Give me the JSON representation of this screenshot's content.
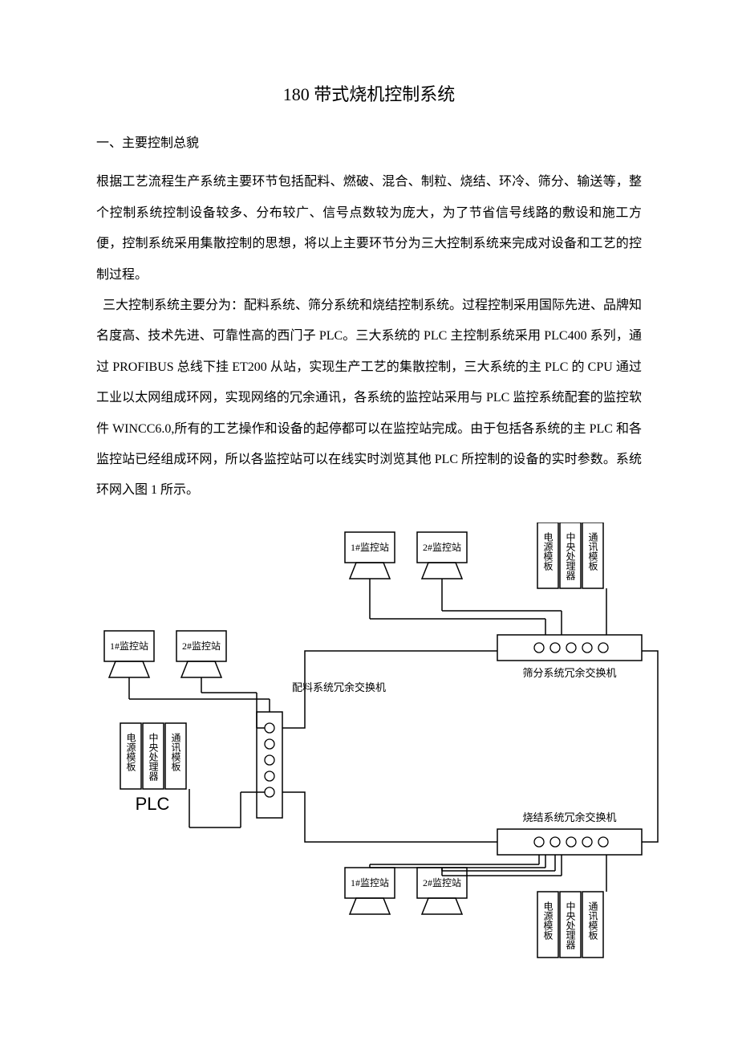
{
  "title": "180 带式烧机控制系统",
  "section1_heading": "一、主要控制总貌",
  "para1": "根据工艺流程生产系统主要环节包括配料、燃破、混合、制粒、烧结、环冷、筛分、输送等，整个控制系统控制设备较多、分布较广、信号点数较为庞大，为了节省信号线路的敷设和施工方便，控制系统采用集散控制的思想，将以上主要环节分为三大控制系统来完成对设备和工艺的控制过程。",
  "para2": "三大控制系统主要分为：配料系统、筛分系统和烧结控制系统。过程控制采用国际先进、品牌知名度高、技术先进、可靠性高的西门子 PLC。三大系统的 PLC 主控制系统采用 PLC400 系列，通过 PROFIBUS 总线下挂 ET200 从站，实现生产工艺的集散控制，三大系统的主 PLC 的 CPU 通过工业以太网组成环网，实现网络的冗余通讯，各系统的监控站采用与 PLC 监控系统配套的监控软件 WINCC6.0,所有的工艺操作和设备的起停都可以在监控站完成。由于包括各系统的主 PLC 和各监控站已经组成环网，所以各监控站可以在线实时浏览其他 PLC 所控制的设备的实时参数。系统环网入图 1 所示。",
  "diagram": {
    "type": "network",
    "stroke_color": "#000000",
    "background_color": "#ffffff",
    "monitor1": "1#监控站",
    "monitor2": "2#监控站",
    "power_module": "电源模板",
    "cpu_module": "中央处理器",
    "comm_module": "通讯模板",
    "plc_label": "PLC",
    "switches": {
      "batching": "配料系统冗余交换机",
      "screening": "筛分系统冗余交换机",
      "sintering": "烧结系统冗余交换机"
    },
    "port_count": 5,
    "port_radius": 6
  }
}
